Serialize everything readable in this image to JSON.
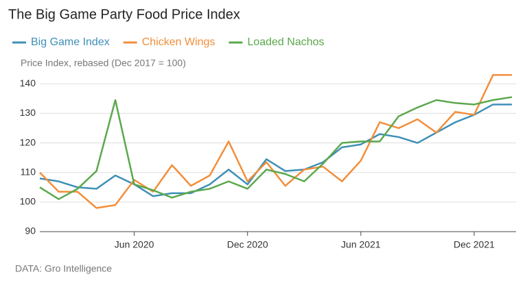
{
  "chart_data": {
    "type": "line",
    "title": "The Big Game Party Food Price Index",
    "y_label": "Price Index, rebased (Dec 2017 = 100)",
    "source": "DATA: Gro Intelligence",
    "x": [
      "2020-01",
      "2020-02",
      "2020-03",
      "2020-04",
      "2020-05",
      "2020-06",
      "2020-07",
      "2020-08",
      "2020-09",
      "2020-10",
      "2020-11",
      "2020-12",
      "2021-01",
      "2021-02",
      "2021-03",
      "2021-04",
      "2021-05",
      "2021-06",
      "2021-07",
      "2021-08",
      "2021-09",
      "2021-10",
      "2021-11",
      "2021-12",
      "2022-01",
      "2022-02"
    ],
    "xticks": [
      {
        "value": "2020-06",
        "label": "Jun 2020"
      },
      {
        "value": "2020-12",
        "label": "Dec 2020"
      },
      {
        "value": "2021-06",
        "label": "Jun 2021"
      },
      {
        "value": "2021-12",
        "label": "Dec 2021"
      }
    ],
    "ylim": [
      90,
      144
    ],
    "yticks": [
      90,
      100,
      110,
      120,
      130,
      140
    ],
    "grid": true,
    "legend": "top",
    "series": [
      {
        "name": "Big Game Index",
        "color": "#3d8fb6",
        "values": [
          108,
          107,
          105,
          104.5,
          109,
          106,
          102,
          103,
          103,
          106,
          111,
          106,
          114.5,
          110.5,
          111,
          113.5,
          118.5,
          119.5,
          123,
          122,
          120,
          123.5,
          127,
          129.5,
          133,
          133
        ]
      },
      {
        "name": "Chicken Wings",
        "color": "#f28e3a",
        "values": [
          110,
          103.5,
          103.5,
          98,
          99,
          107.5,
          103.5,
          112.5,
          105.5,
          109,
          120.5,
          107,
          113.5,
          105.5,
          111,
          112,
          107,
          114,
          127,
          125,
          128,
          123.5,
          130.5,
          129.5,
          143,
          143
        ]
      },
      {
        "name": "Loaded Nachos",
        "color": "#5aa84c",
        "values": [
          105,
          101,
          104.5,
          110.5,
          134.5,
          106,
          104,
          101.5,
          103.5,
          104.5,
          107,
          104.5,
          111,
          109.5,
          107,
          113,
          120,
          120.5,
          120.5,
          129,
          132,
          134.5,
          133.5,
          133,
          134.5,
          135.5
        ]
      }
    ]
  }
}
